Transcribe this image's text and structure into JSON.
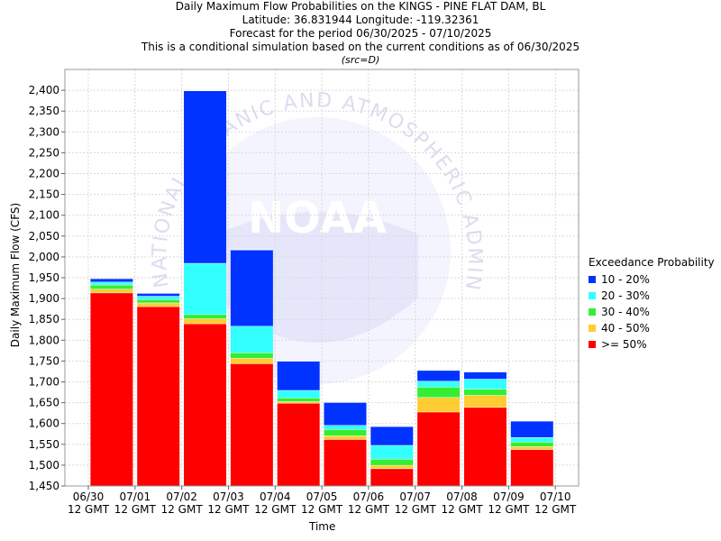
{
  "title": {
    "line1": "Daily Maximum Flow Probabilities on the KINGS - PINE FLAT DAM, BL",
    "line2": "Latitude: 36.831944 Longitude: -119.32361",
    "line3": "Forecast for the period 06/30/2025 - 07/10/2025",
    "line4": "This is a conditional simulation based on the current conditions as of 06/30/2025",
    "line5": "(src=D)"
  },
  "legend": {
    "title": "Exceedance Probability",
    "items": [
      {
        "label": "10 - 20%",
        "color": "#0033ff"
      },
      {
        "label": "20 - 30%",
        "color": "#33ffff"
      },
      {
        "label": "30 - 40%",
        "color": "#33ee33"
      },
      {
        "label": "40 - 50%",
        "color": "#ffcc33"
      },
      {
        "label": ">= 50%",
        "color": "#ff0000"
      }
    ]
  },
  "watermark": {
    "logo_text": "NOAA",
    "ring_text": "NATIONAL OCEANIC AND ATMOSPHERIC ADMINISTRATION"
  },
  "chart_data": {
    "type": "bar",
    "stacked": true,
    "xlabel": "Time",
    "ylabel": "Daily Maximum Flow (CFS)",
    "ylim": [
      1450,
      2450
    ],
    "ytick_step": 50,
    "grid": true,
    "legend_position": "right",
    "x_tick_labels": [
      {
        "date": "06/30",
        "time": "12 GMT"
      },
      {
        "date": "07/01",
        "time": "12 GMT"
      },
      {
        "date": "07/02",
        "time": "12 GMT"
      },
      {
        "date": "07/03",
        "time": "12 GMT"
      },
      {
        "date": "07/04",
        "time": "12 GMT"
      },
      {
        "date": "07/05",
        "time": "12 GMT"
      },
      {
        "date": "07/06",
        "time": "12 GMT"
      },
      {
        "date": "07/07",
        "time": "12 GMT"
      },
      {
        "date": "07/08",
        "time": "12 GMT"
      },
      {
        "date": "07/09",
        "time": "12 GMT"
      },
      {
        "date": "07/10",
        "time": "12 GMT"
      }
    ],
    "bars": [
      {
        "day": "06/30-07/01",
        "p50": 1914,
        "p40": 1923,
        "p30": 1933,
        "p20": 1940,
        "p10": 1948
      },
      {
        "day": "07/01-07/02",
        "p50": 1881,
        "p40": 1890,
        "p30": 1898,
        "p20": 1906,
        "p10": 1913
      },
      {
        "day": "07/02-07/03",
        "p50": 1840,
        "p40": 1852,
        "p30": 1862,
        "p20": 1985,
        "p10": 2399
      },
      {
        "day": "07/03-07/04",
        "p50": 1744,
        "p40": 1757,
        "p30": 1770,
        "p20": 1834,
        "p10": 2017
      },
      {
        "day": "07/04-07/05",
        "p50": 1649,
        "p40": 1653,
        "p30": 1662,
        "p20": 1680,
        "p10": 1750
      },
      {
        "day": "07/05-07/06",
        "p50": 1562,
        "p40": 1571,
        "p30": 1586,
        "p20": 1596,
        "p10": 1651
      },
      {
        "day": "07/06-07/07",
        "p50": 1492,
        "p40": 1500,
        "p30": 1515,
        "p20": 1548,
        "p10": 1593
      },
      {
        "day": "07/07-07/08",
        "p50": 1628,
        "p40": 1663,
        "p30": 1688,
        "p20": 1702,
        "p10": 1728
      },
      {
        "day": "07/08-07/09",
        "p50": 1639,
        "p40": 1668,
        "p30": 1683,
        "p20": 1707,
        "p10": 1724
      },
      {
        "day": "07/09-07/10",
        "p50": 1538,
        "p40": 1545,
        "p30": 1556,
        "p20": 1567,
        "p10": 1606
      }
    ]
  }
}
